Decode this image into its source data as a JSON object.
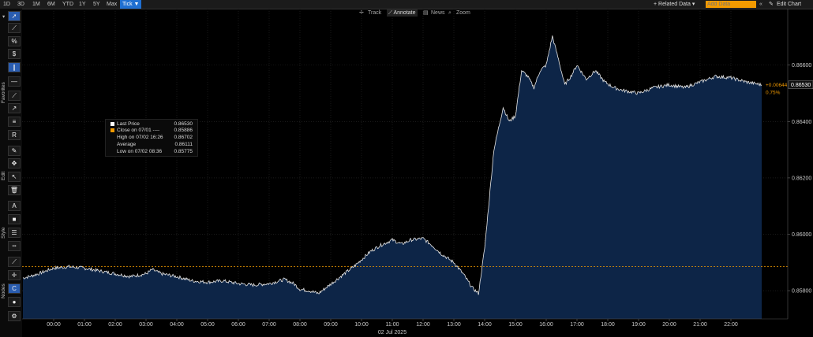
{
  "toolbar": {
    "ranges": [
      "1D",
      "3D",
      "1M",
      "6M",
      "YTD",
      "1Y",
      "5Y",
      "Max",
      "Tick ▼"
    ],
    "active_range": "Tick ▼",
    "related_data": "+ Related Data ▾",
    "add_data_placeholder": "Add Data",
    "edit_chart": "Edit Chart",
    "tools": [
      "Track",
      "Annotate",
      "News",
      "Zoom"
    ],
    "active_tool": "Annotate"
  },
  "sidebar": {
    "sections": [
      "Favorites",
      "Edit",
      "Style",
      "Nodes"
    ],
    "buttons": [
      "cursor-icon",
      "line-draw-icon",
      "percent-icon",
      "dollar-icon",
      "fib-icon",
      "hline-icon",
      "ray-icon",
      "arrow-line-icon",
      "channel-icon",
      "text-r-icon",
      "pen-icon",
      "move-icon",
      "pointer-icon",
      "trash-icon",
      "text-a-icon",
      "fill-icon",
      "line-weight-icon",
      "line-style-icon",
      "pencil-icon",
      "crosshair-icon",
      "c-icon",
      "palette-icon",
      "gear-icon"
    ]
  },
  "legend": {
    "rows": [
      {
        "label": "Last Price",
        "value": "0.86530",
        "color": "#ffffff"
      },
      {
        "label": "Close on 07/01 ---- ",
        "value": "0.85886",
        "color": "#f29a00"
      },
      {
        "label": "High on 07/02 16:26",
        "value": "0.86702",
        "color": ""
      },
      {
        "label": "Average",
        "value": "0.86111",
        "color": ""
      },
      {
        "label": "Low on 07/02 08:36",
        "value": "0.85775",
        "color": ""
      }
    ]
  },
  "chart_data": {
    "type": "area",
    "xlabel": "02 Jul 2025",
    "x_ticks": [
      "00:00",
      "01:00",
      "02:00",
      "03:00",
      "04:00",
      "05:00",
      "06:00",
      "07:00",
      "08:00",
      "09:00",
      "10:00",
      "11:00",
      "12:00",
      "13:00",
      "14:00",
      "15:00",
      "16:00",
      "17:00",
      "18:00",
      "19:00",
      "20:00",
      "21:00",
      "22:00"
    ],
    "y_ticks": [
      "0.85800",
      "0.86000",
      "0.86200",
      "0.86400",
      "0.86600"
    ],
    "ylim": [
      0.857,
      0.868
    ],
    "last_price_label": "0.86530",
    "change_label": "+0.00644",
    "change_pct_label": "0.75%",
    "prev_close": 0.85886,
    "colors": {
      "line": "#e6e6e6",
      "fill": "#0d2547",
      "ref": "#f29a00",
      "grid": "#2a2a2a"
    },
    "series": [
      {
        "name": "Last Price",
        "x_hours": [
          -1.0,
          -0.8,
          -0.5,
          0.0,
          0.5,
          1.0,
          1.5,
          2.0,
          2.5,
          3.0,
          3.2,
          3.5,
          4.0,
          4.5,
          5.0,
          5.5,
          6.0,
          6.5,
          7.0,
          7.5,
          7.8,
          8.0,
          8.3,
          8.6,
          8.9,
          9.2,
          9.5,
          9.8,
          10.0,
          10.3,
          10.6,
          11.0,
          11.3,
          11.6,
          12.0,
          12.3,
          12.6,
          13.0,
          13.3,
          13.6,
          13.8,
          14.0,
          14.3,
          14.6,
          14.8,
          15.0,
          15.2,
          15.4,
          15.6,
          15.8,
          16.0,
          16.2,
          16.4,
          16.6,
          16.8,
          17.0,
          17.3,
          17.6,
          17.9,
          18.2,
          18.5,
          19.0,
          19.5,
          20.0,
          20.5,
          21.0,
          21.5,
          22.0,
          22.5,
          23.0
        ],
        "values": [
          0.85845,
          0.8585,
          0.8586,
          0.8588,
          0.85885,
          0.8588,
          0.8587,
          0.8586,
          0.8585,
          0.8586,
          0.85875,
          0.8586,
          0.8585,
          0.85835,
          0.8583,
          0.85835,
          0.85825,
          0.8582,
          0.85825,
          0.8584,
          0.85825,
          0.85805,
          0.858,
          0.8579,
          0.85815,
          0.8584,
          0.85865,
          0.8589,
          0.8591,
          0.8594,
          0.8596,
          0.8598,
          0.85965,
          0.8598,
          0.85985,
          0.8596,
          0.8593,
          0.859,
          0.8586,
          0.8581,
          0.8579,
          0.8595,
          0.863,
          0.8645,
          0.864,
          0.8642,
          0.8658,
          0.8656,
          0.8652,
          0.8658,
          0.866,
          0.86702,
          0.8662,
          0.8653,
          0.8656,
          0.866,
          0.8655,
          0.8658,
          0.8654,
          0.8652,
          0.8651,
          0.865,
          0.8652,
          0.8653,
          0.8652,
          0.8654,
          0.8656,
          0.86555,
          0.8654,
          0.8653
        ]
      }
    ]
  }
}
